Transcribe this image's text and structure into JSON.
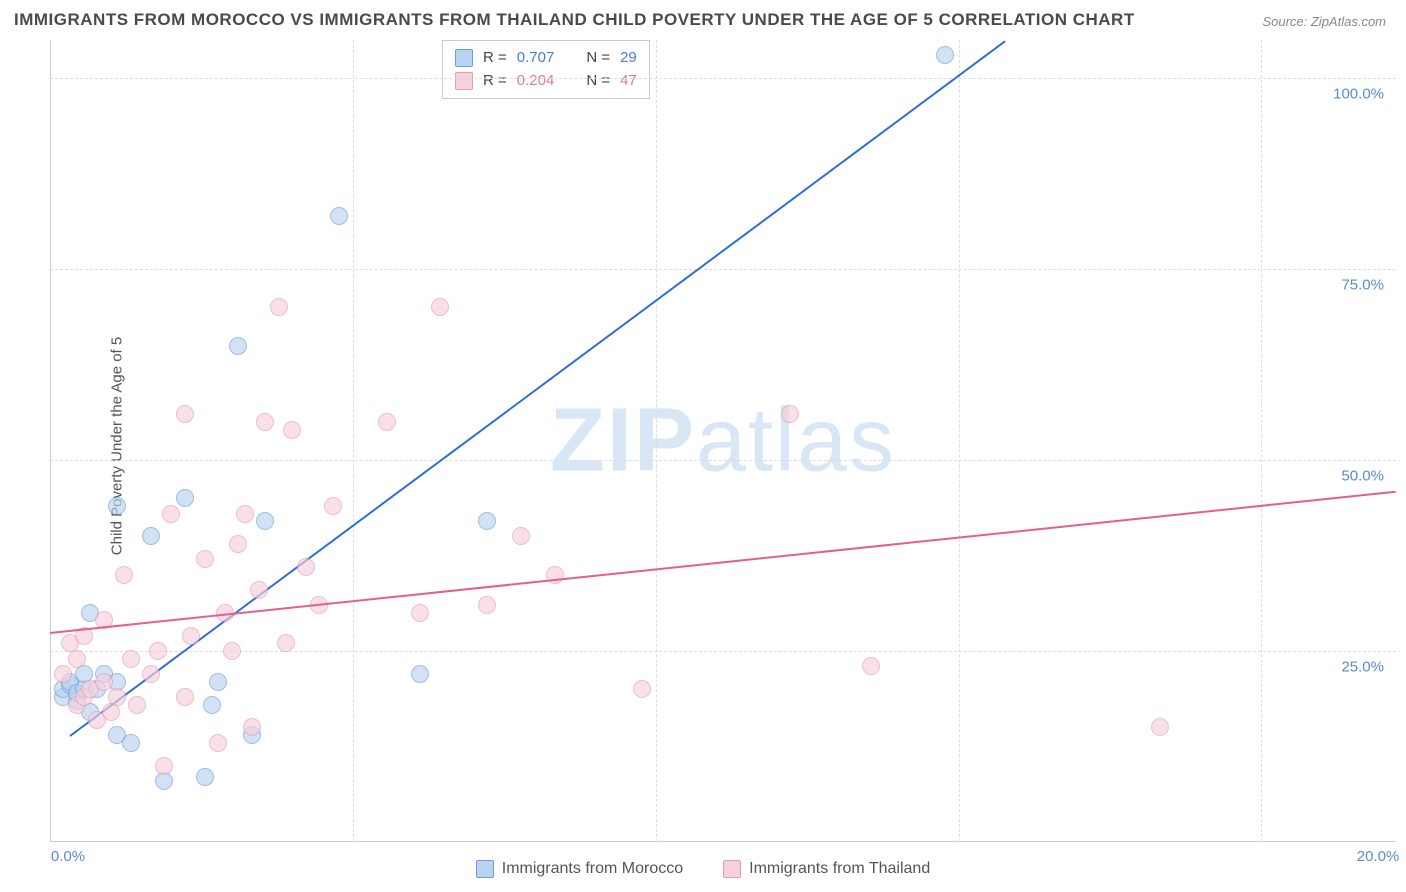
{
  "title": "IMMIGRANTS FROM MOROCCO VS IMMIGRANTS FROM THAILAND CHILD POVERTY UNDER THE AGE OF 5 CORRELATION CHART",
  "source": "Source: ZipAtlas.com",
  "ylabel": "Child Poverty Under the Age of 5",
  "watermark_a": "ZIP",
  "watermark_b": "atlas",
  "background_color": "#ffffff",
  "grid_color": "#dddddd",
  "axis_color": "#cccccc",
  "chart": {
    "type": "scatter",
    "xlim": [
      0,
      20
    ],
    "ylim": [
      0,
      105
    ],
    "xticks": [
      0,
      20
    ],
    "xtick_labels": [
      "0.0%",
      "20.0%"
    ],
    "yticks": [
      25,
      50,
      75,
      100
    ],
    "ytick_labels": [
      "25.0%",
      "50.0%",
      "75.0%",
      "100.0%"
    ],
    "vgrid": [
      4.5,
      9.0,
      13.5,
      18.0
    ],
    "series": [
      {
        "name": "Immigrants from Morocco",
        "color_fill": "#b9d3f0",
        "color_stroke": "#6f9bd8",
        "trend_color": "#2e6fd6",
        "r": "0.707",
        "n": "29",
        "trend": {
          "x1": 0.3,
          "y1": 14,
          "x2": 14.2,
          "y2": 105
        },
        "points": [
          [
            0.2,
            19
          ],
          [
            0.2,
            20
          ],
          [
            0.3,
            20.5
          ],
          [
            0.3,
            21
          ],
          [
            0.4,
            18.5
          ],
          [
            0.4,
            19.5
          ],
          [
            0.5,
            20
          ],
          [
            0.5,
            22
          ],
          [
            0.6,
            17
          ],
          [
            0.6,
            30
          ],
          [
            0.7,
            20
          ],
          [
            0.8,
            22
          ],
          [
            1.0,
            14
          ],
          [
            1.0,
            21
          ],
          [
            1.0,
            44
          ],
          [
            1.2,
            13
          ],
          [
            1.5,
            40
          ],
          [
            1.7,
            8
          ],
          [
            2.0,
            45
          ],
          [
            2.3,
            8.5
          ],
          [
            2.4,
            18
          ],
          [
            2.5,
            21
          ],
          [
            2.8,
            65
          ],
          [
            3.0,
            14
          ],
          [
            3.2,
            42
          ],
          [
            4.3,
            82
          ],
          [
            5.5,
            22
          ],
          [
            6.5,
            42
          ],
          [
            13.3,
            103
          ]
        ]
      },
      {
        "name": "Immigrants from Thailand",
        "color_fill": "#f7d0dc",
        "color_stroke": "#e39cb4",
        "trend_color": "#e55f8b",
        "r": "0.204",
        "n": "47",
        "trend": {
          "x1": 0,
          "y1": 27.5,
          "x2": 20,
          "y2": 46
        },
        "points": [
          [
            0.2,
            22
          ],
          [
            0.3,
            26
          ],
          [
            0.4,
            18
          ],
          [
            0.4,
            24
          ],
          [
            0.5,
            19
          ],
          [
            0.5,
            27
          ],
          [
            0.6,
            20
          ],
          [
            0.7,
            16
          ],
          [
            0.8,
            21
          ],
          [
            0.8,
            29
          ],
          [
            0.9,
            17
          ],
          [
            1.0,
            19
          ],
          [
            1.1,
            35
          ],
          [
            1.2,
            24
          ],
          [
            1.3,
            18
          ],
          [
            1.5,
            22
          ],
          [
            1.6,
            25
          ],
          [
            1.7,
            10
          ],
          [
            1.8,
            43
          ],
          [
            2.0,
            19
          ],
          [
            2.0,
            56
          ],
          [
            2.1,
            27
          ],
          [
            2.3,
            37
          ],
          [
            2.5,
            13
          ],
          [
            2.6,
            30
          ],
          [
            2.7,
            25
          ],
          [
            2.8,
            39
          ],
          [
            2.9,
            43
          ],
          [
            3.0,
            15
          ],
          [
            3.1,
            33
          ],
          [
            3.2,
            55
          ],
          [
            3.4,
            70
          ],
          [
            3.5,
            26
          ],
          [
            3.6,
            54
          ],
          [
            3.8,
            36
          ],
          [
            4.0,
            31
          ],
          [
            4.2,
            44
          ],
          [
            5.0,
            55
          ],
          [
            5.5,
            30
          ],
          [
            5.8,
            70
          ],
          [
            6.5,
            31
          ],
          [
            7.0,
            40
          ],
          [
            7.5,
            35
          ],
          [
            8.8,
            20
          ],
          [
            11.0,
            56
          ],
          [
            12.2,
            23
          ],
          [
            16.5,
            15
          ]
        ]
      }
    ]
  },
  "stats_labels": {
    "r": "R  =",
    "n": "N  ="
  },
  "legend_labels": {
    "morocco": "Immigrants from Morocco",
    "thailand": "Immigrants from Thailand"
  }
}
